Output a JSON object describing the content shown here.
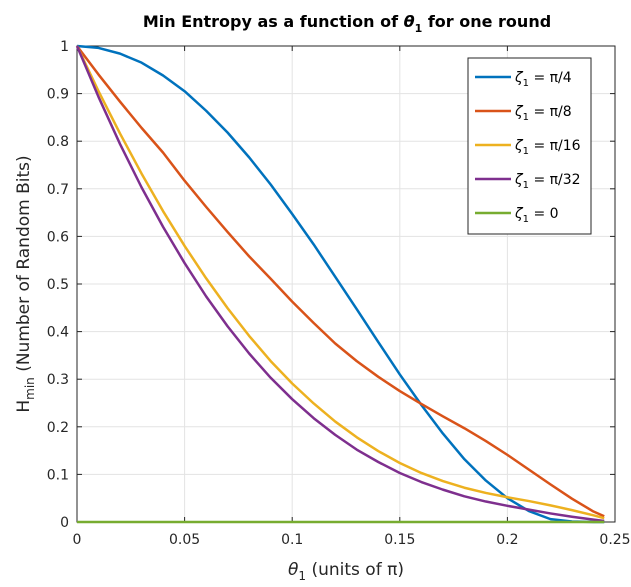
{
  "chart_data": {
    "type": "line",
    "title": {
      "prefix": "Min Entropy as a function of ",
      "symbol": "θ",
      "subscript": "1",
      "suffix": " for one round"
    },
    "xlabel": {
      "symbol": "θ",
      "subscript": "1",
      "suffix": " (units of π)"
    },
    "ylabel": {
      "main": "H",
      "subscript": "min",
      "suffix": " (Number of Random Bits)"
    },
    "xlim": [
      0,
      0.25
    ],
    "ylim": [
      0,
      1
    ],
    "xticks": [
      "0",
      "0.05",
      "0.1",
      "0.15",
      "0.2",
      "0.25"
    ],
    "yticks": [
      "0",
      "0.1",
      "0.2",
      "0.3",
      "0.4",
      "0.5",
      "0.6",
      "0.7",
      "0.8",
      "0.9",
      "1"
    ],
    "grid": true,
    "legend_position": "top-right",
    "x": [
      0,
      0.01,
      0.02,
      0.03,
      0.04,
      0.05,
      0.06,
      0.07,
      0.08,
      0.09,
      0.1,
      0.11,
      0.12,
      0.13,
      0.14,
      0.15,
      0.16,
      0.17,
      0.18,
      0.19,
      0.2,
      0.21,
      0.22,
      0.23,
      0.24,
      0.245
    ],
    "series": [
      {
        "label": {
          "symbol": "ζ",
          "subscript": "1",
          "suffix": " = π/4"
        },
        "color": "#0072BD",
        "values": [
          1.0,
          0.996,
          0.984,
          0.965,
          0.938,
          0.905,
          0.864,
          0.818,
          0.766,
          0.709,
          0.647,
          0.583,
          0.515,
          0.447,
          0.378,
          0.31,
          0.246,
          0.186,
          0.132,
          0.087,
          0.05,
          0.023,
          0.006,
          0.001,
          0.0,
          0.0
        ]
      },
      {
        "label": {
          "symbol": "ζ",
          "subscript": "1",
          "suffix": " = π/8"
        },
        "color": "#D95319",
        "values": [
          1.0,
          0.94,
          0.883,
          0.828,
          0.776,
          0.717,
          0.662,
          0.609,
          0.558,
          0.511,
          0.463,
          0.418,
          0.375,
          0.338,
          0.305,
          0.275,
          0.248,
          0.222,
          0.197,
          0.17,
          0.141,
          0.11,
          0.079,
          0.049,
          0.022,
          0.012
        ]
      },
      {
        "label": {
          "symbol": "ζ",
          "subscript": "1",
          "suffix": " = π/16"
        },
        "color": "#EDB120",
        "values": [
          1.0,
          0.905,
          0.816,
          0.732,
          0.653,
          0.58,
          0.512,
          0.449,
          0.391,
          0.338,
          0.291,
          0.249,
          0.211,
          0.178,
          0.149,
          0.124,
          0.103,
          0.086,
          0.072,
          0.061,
          0.052,
          0.044,
          0.035,
          0.025,
          0.014,
          0.008
        ]
      },
      {
        "label": {
          "symbol": "ζ",
          "subscript": "1",
          "suffix": " = π/32"
        },
        "color": "#7E2F8E",
        "values": [
          1.0,
          0.893,
          0.794,
          0.703,
          0.62,
          0.544,
          0.474,
          0.411,
          0.354,
          0.303,
          0.258,
          0.218,
          0.183,
          0.152,
          0.126,
          0.103,
          0.084,
          0.068,
          0.054,
          0.043,
          0.034,
          0.026,
          0.018,
          0.011,
          0.005,
          0.002
        ]
      },
      {
        "label": {
          "symbol": "ζ",
          "subscript": "1",
          "suffix": " = 0"
        },
        "color": "#77AC30",
        "values": [
          0,
          0,
          0,
          0,
          0,
          0,
          0,
          0,
          0,
          0,
          0,
          0,
          0,
          0,
          0,
          0,
          0,
          0,
          0,
          0,
          0,
          0,
          0,
          0,
          0,
          0
        ]
      }
    ]
  }
}
